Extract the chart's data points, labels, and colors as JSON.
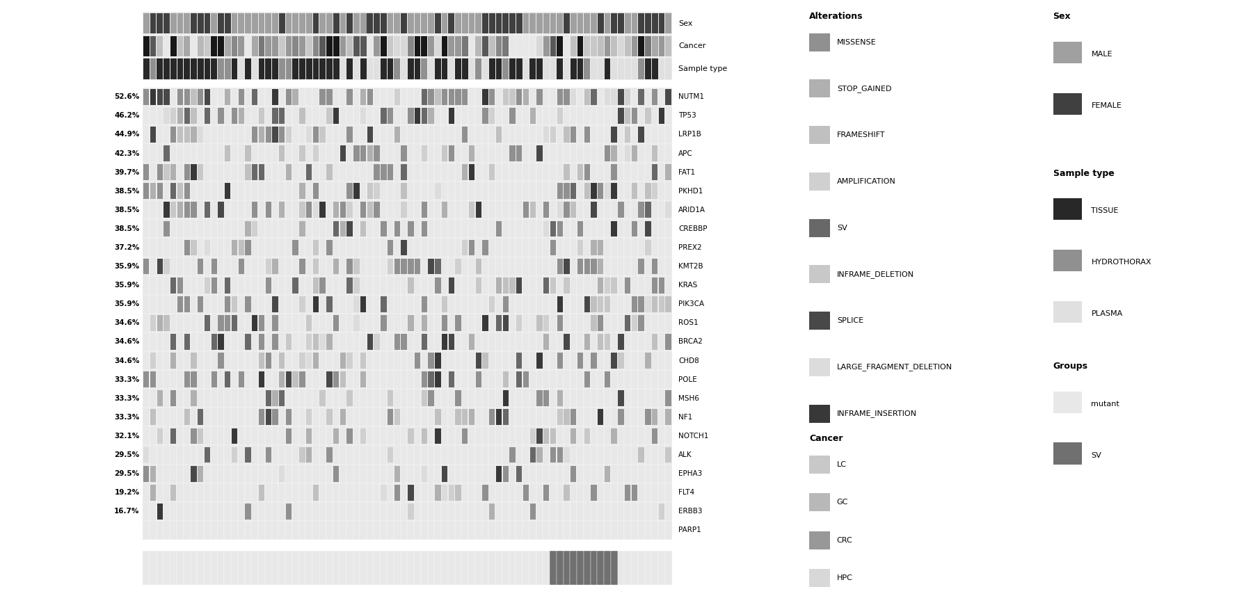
{
  "genes": [
    "NUTM1",
    "TP53",
    "LRP1B",
    "APC",
    "FAT1",
    "PKHD1",
    "ARID1A",
    "CREBBP",
    "PREX2",
    "KMT2B",
    "KRAS",
    "PIK3CA",
    "ROS1",
    "BRCA2",
    "CHD8",
    "POLE",
    "MSH6",
    "NF1",
    "NOTCH1",
    "ALK",
    "EPHA3",
    "FLT4",
    "ERBB3",
    "PARP1"
  ],
  "percentages": [
    "52.6%",
    "46.2%",
    "44.9%",
    "42.3%",
    "39.7%",
    "38.5%",
    "38.5%",
    "38.5%",
    "37.2%",
    "35.9%",
    "35.9%",
    "35.9%",
    "34.6%",
    "34.6%",
    "34.6%",
    "33.3%",
    "33.3%",
    "33.3%",
    "32.1%",
    "29.5%",
    "29.5%",
    "19.2%",
    "16.7%",
    ""
  ],
  "n_samples": 78,
  "alteration_colors": {
    "MISSENSE": "#909090",
    "STOP_GAINED": "#b0b0b0",
    "FRAMESHIFT": "#c0c0c0",
    "AMPLIFICATION": "#d0d0d0",
    "SV": "#686868",
    "INFRAME_DELETION": "#c8c8c8",
    "SPLICE": "#484848",
    "LARGE_FRAGMENT_DELETION": "#dcdcdc",
    "INFRAME_INSERTION": "#383838"
  },
  "sex_colors": {
    "MALE": "#a0a0a0",
    "FEMALE": "#404040"
  },
  "sample_type_colors": {
    "TISSUE": "#282828",
    "HYDROTHORAX": "#909090",
    "PLASMA": "#e0e0e0"
  },
  "cancer_colors": {
    "LC": "#c8c8c8",
    "GC": "#b8b8b8",
    "CRC": "#989898",
    "HPC": "#d8d8d8",
    "UC": "#888888",
    "BC": "#787878",
    "PC": "#181818",
    "VC": "#a8a8a8",
    "ESCC": "#c0c0c0",
    "SARCOMA": "#585858",
    "OV": "#989898",
    "HNC": "#e8e8e8"
  },
  "groups_colors": {
    "mutant": "#e8e8e8",
    "SV": "#707070"
  },
  "cell_bg": "#e8e8e8",
  "figure_bg": "#ffffff"
}
